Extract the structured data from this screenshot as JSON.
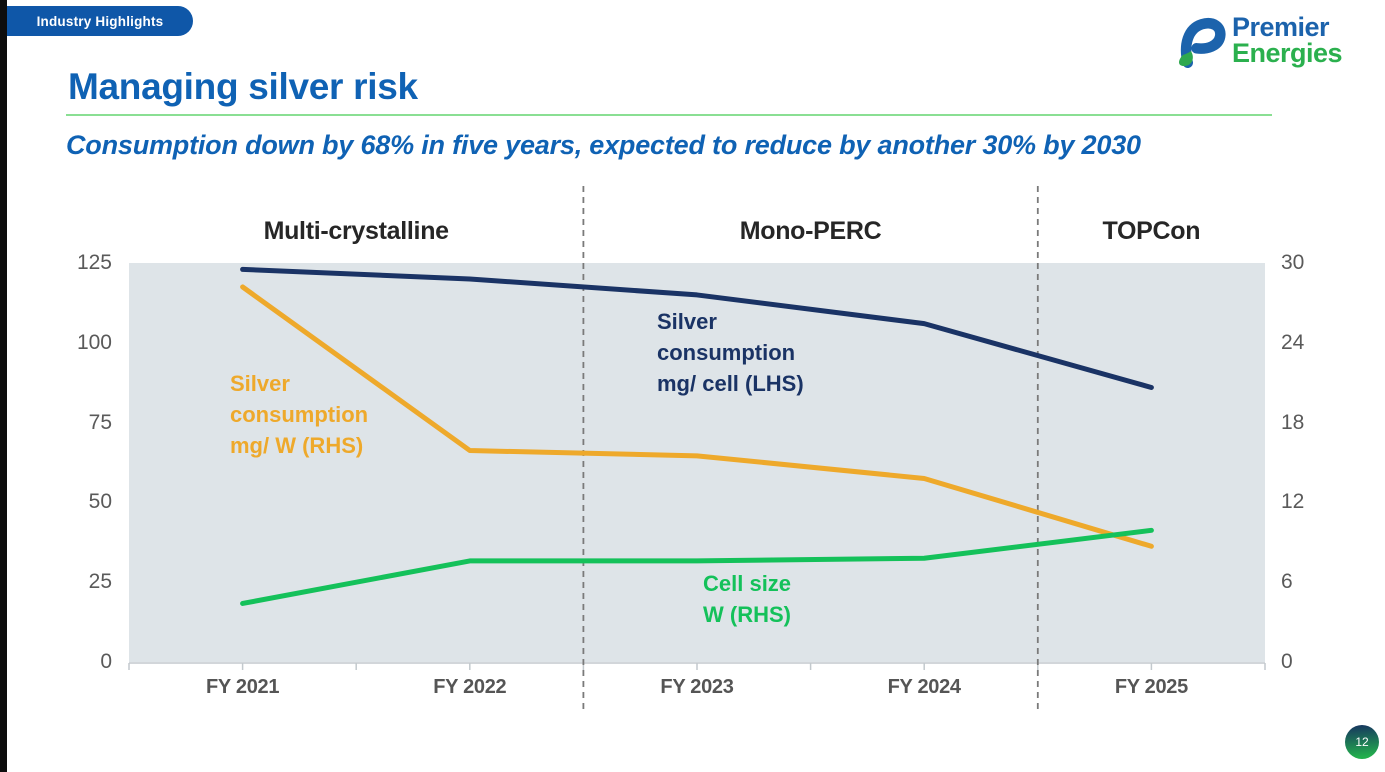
{
  "badge": {
    "label": "Industry Highlights"
  },
  "logo": {
    "line1": "Premier",
    "line2": "Energies"
  },
  "title": "Managing silver risk",
  "subtitle": "Consumption down by 68% in five years, expected to reduce by another 30% by 2030",
  "page_number": "12",
  "colors": {
    "title_blue": "#0F62B4",
    "underline_green": "#8ADF93",
    "badge_blue": "#0F57A8",
    "left_bar_black": "#0D0D0D",
    "axis_text_gray": "#5A5A5A",
    "divider_gray": "#7A7A7A",
    "page_circle_top": "#17395F",
    "page_circle_bottom": "#23AF4D"
  },
  "chart_data": {
    "type": "line",
    "categories": [
      "FY 2021",
      "FY 2022",
      "FY 2023",
      "FY 2024",
      "FY 2025"
    ],
    "sections": [
      {
        "label": "Multi-crystalline"
      },
      {
        "label": "Mono-PERC"
      },
      {
        "label": "TOPCon"
      }
    ],
    "divider_positions": [
      2,
      4
    ],
    "left_axis": {
      "ticks": [
        0,
        25,
        50,
        75,
        100,
        125
      ],
      "range": [
        0,
        125
      ]
    },
    "right_axis": {
      "ticks": [
        0,
        6,
        12,
        18,
        24,
        30
      ],
      "range": [
        0,
        30
      ]
    },
    "series": [
      {
        "name": "Silver consumption mg/ cell (LHS)",
        "axis": "left",
        "color": "#1A3365",
        "values": [
          123,
          120,
          115,
          106,
          86
        ],
        "label_lines": [
          "Silver",
          "consumption",
          "mg/ cell (LHS)"
        ]
      },
      {
        "name": "Silver consumption mg/ W (RHS)",
        "axis": "right",
        "color": "#EEA92B",
        "values": [
          28.2,
          15.9,
          15.5,
          13.8,
          8.7
        ],
        "label_lines": [
          "Silver",
          "consumption",
          "mg/ W (RHS)"
        ]
      },
      {
        "name": "Cell size W (RHS)",
        "axis": "right",
        "color": "#14C15A",
        "values": [
          4.4,
          7.6,
          7.6,
          7.8,
          9.9
        ],
        "label_lines": [
          "Cell size",
          "W (RHS)"
        ]
      }
    ],
    "plot_bg": "#DEE4E8",
    "grid": false,
    "legend_position": "inline-annotations"
  }
}
